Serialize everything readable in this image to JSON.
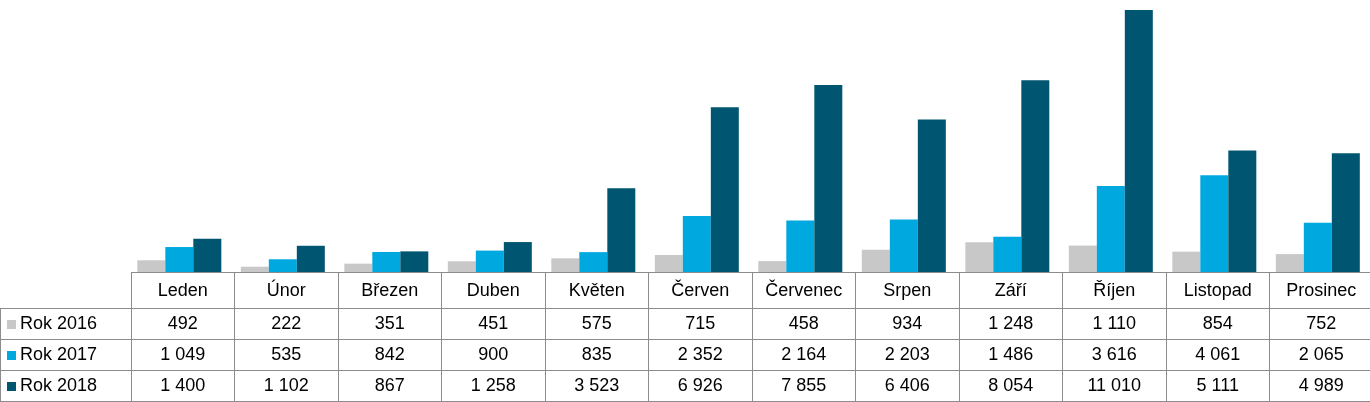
{
  "chart_data": {
    "type": "bar",
    "categories": [
      "Leden",
      "Únor",
      "Březen",
      "Duben",
      "Květen",
      "Červen",
      "Červenec",
      "Srpen",
      "Září",
      "Říjen",
      "Listopad",
      "Prosinec"
    ],
    "series": [
      {
        "name": "Rok 2016",
        "color": "#c8c8c8",
        "values": [
          492,
          222,
          351,
          451,
          575,
          715,
          458,
          934,
          1248,
          1110,
          854,
          752
        ],
        "value_labels": [
          "492",
          "222",
          "351",
          "451",
          "575",
          "715",
          "458",
          "934",
          "1 248",
          "1 110",
          "854",
          "752"
        ]
      },
      {
        "name": "Rok 2017",
        "color": "#00a8e0",
        "values": [
          1049,
          535,
          842,
          900,
          835,
          2352,
          2164,
          2203,
          1486,
          3616,
          4061,
          2065
        ],
        "value_labels": [
          "1 049",
          "535",
          "842",
          "900",
          "835",
          "2 352",
          "2 164",
          "2 203",
          "1 486",
          "3 616",
          "4 061",
          "2 065"
        ]
      },
      {
        "name": "Rok 2018",
        "color": "#005670",
        "values": [
          1400,
          1102,
          867,
          1258,
          3523,
          6926,
          7855,
          6406,
          8054,
          11010,
          5111,
          4989
        ],
        "value_labels": [
          "1 400",
          "1 102",
          "867",
          "1 258",
          "3 523",
          "6 926",
          "7 855",
          "6 406",
          "8 054",
          "11 010",
          "5 111",
          "4 989"
        ]
      }
    ],
    "legend": "bottom left",
    "grid": false
  }
}
